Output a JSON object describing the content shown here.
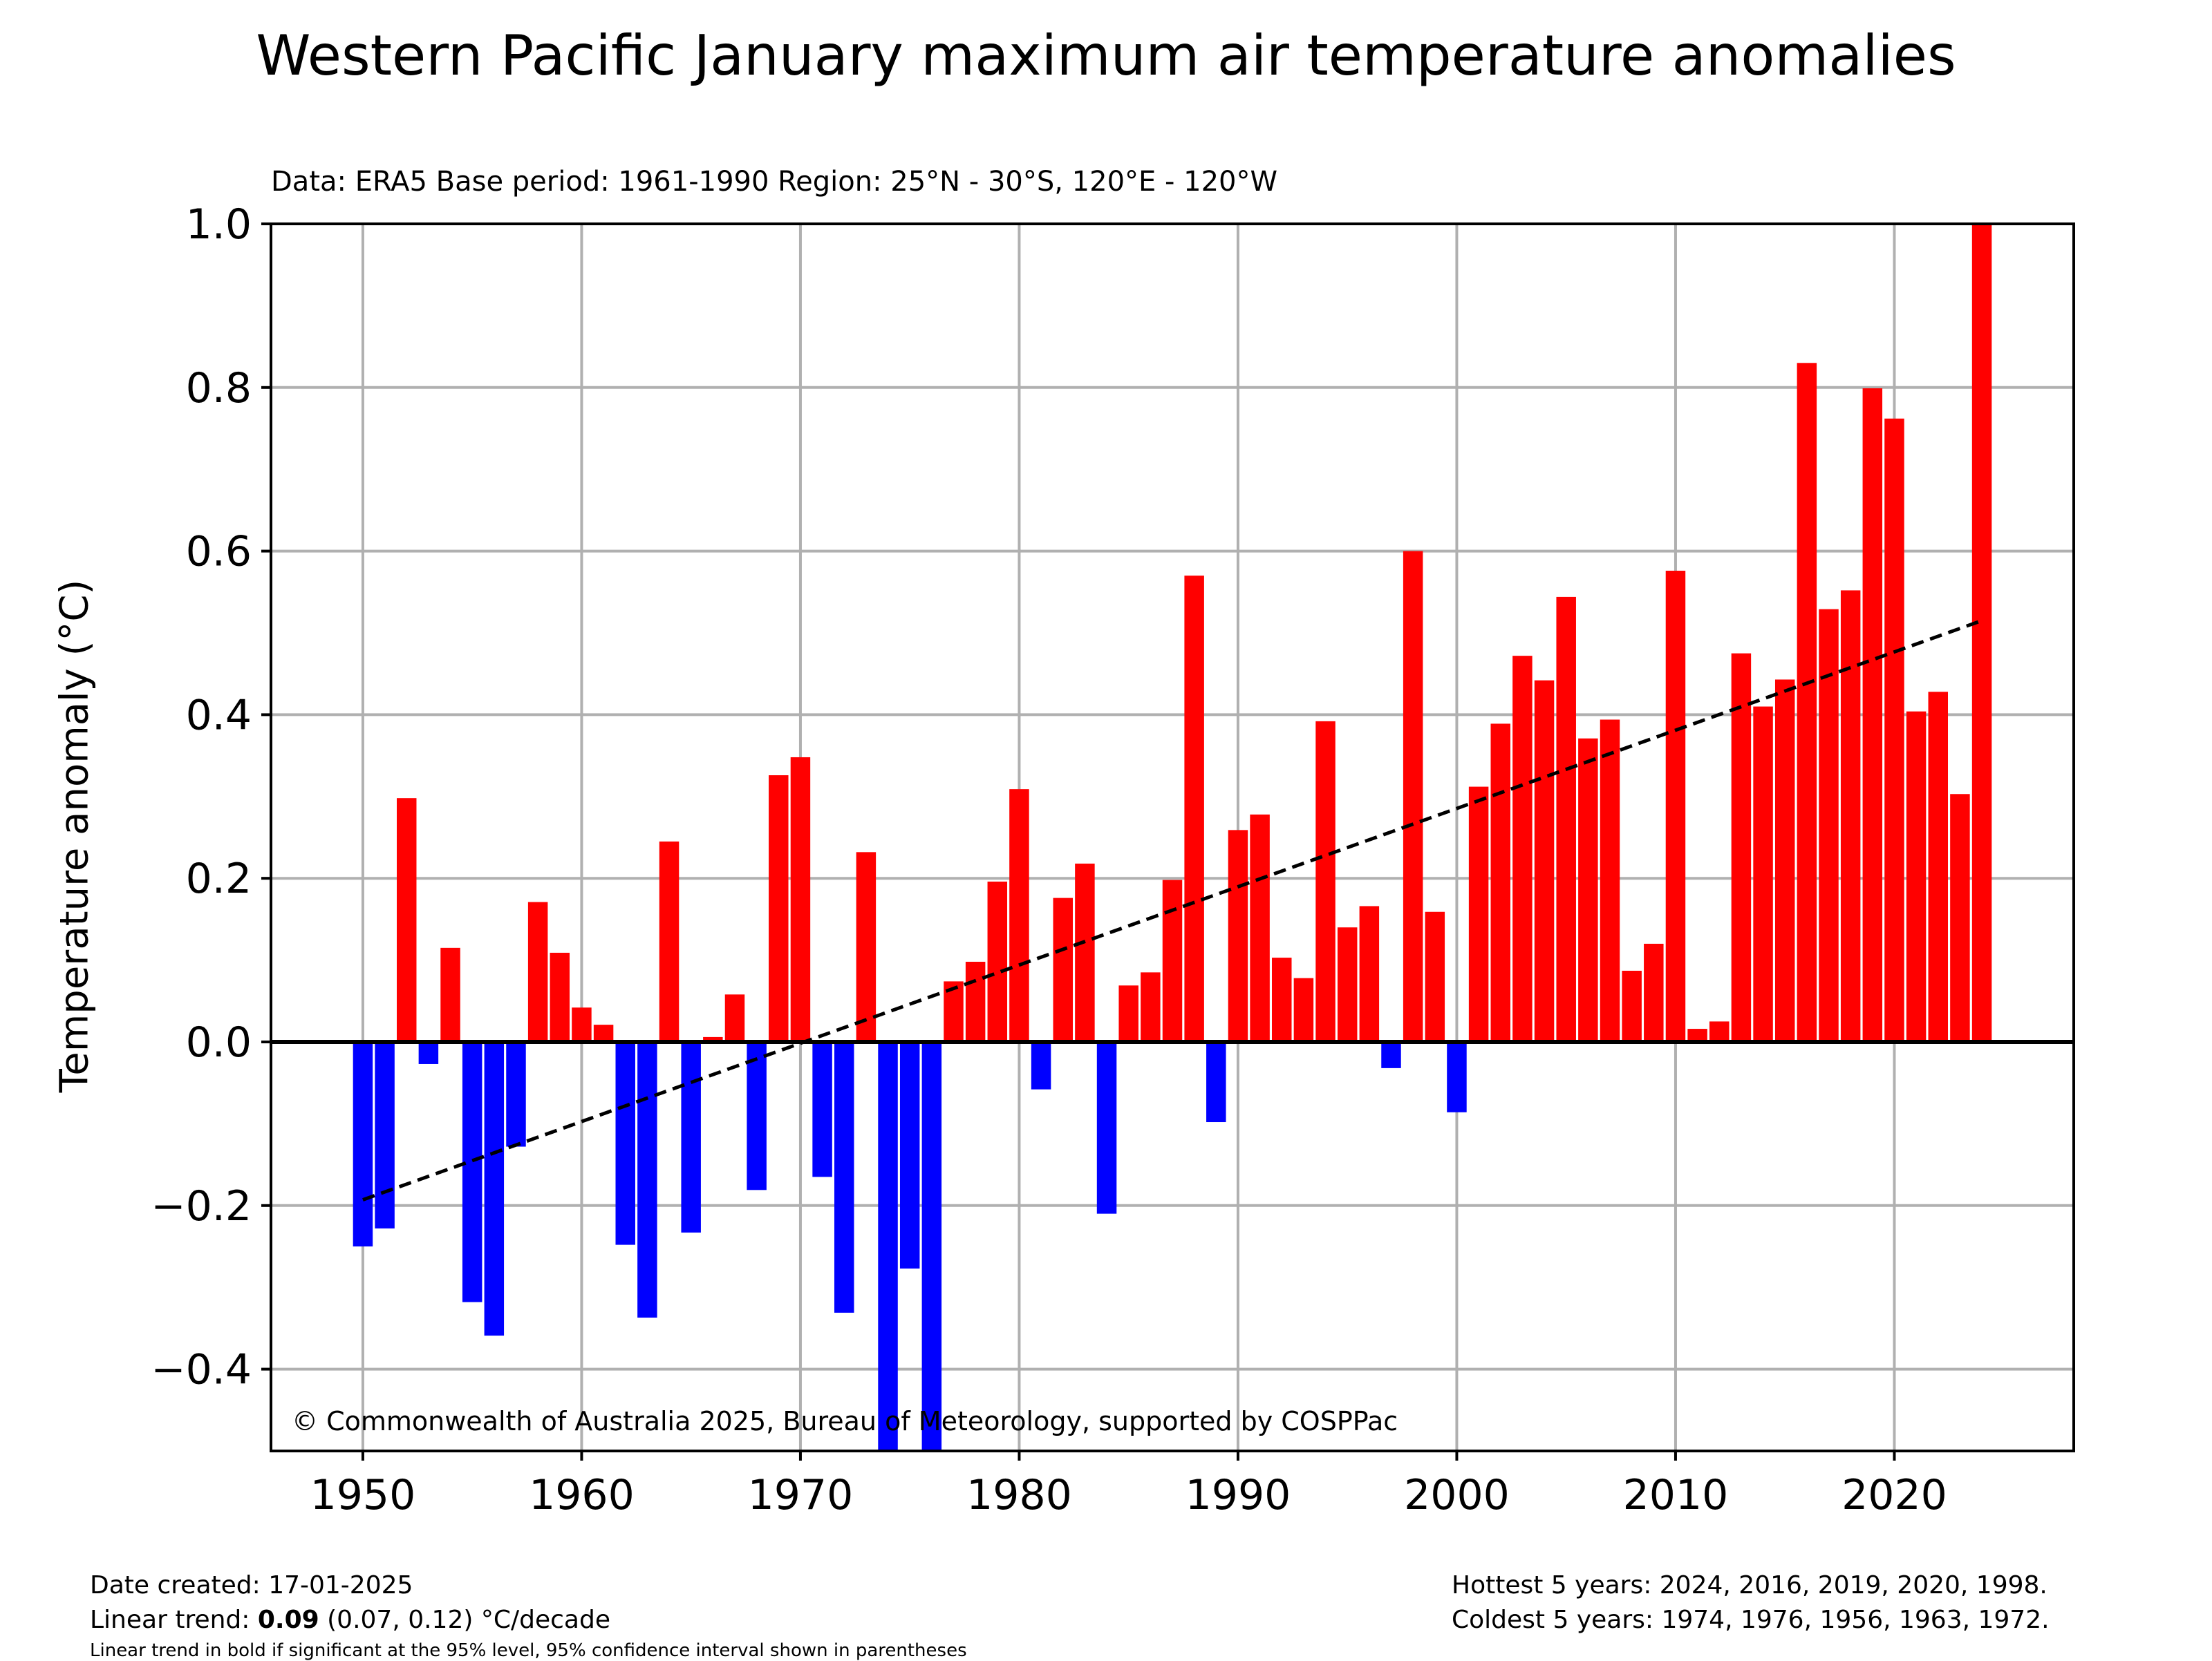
{
  "chart_data": {
    "type": "bar",
    "title": "Western Pacific January maximum air temperature anomalies",
    "subtitle": "Data: ERA5  Base period: 1961-1990  Region: 25°N - 30°S, 120°E - 120°W",
    "xlabel": "",
    "ylabel": "Temperature anomaly (°C)",
    "xlim": [
      1945.8,
      2028.2
    ],
    "ylim": [
      -0.5,
      1.0
    ],
    "x_ticks": [
      1950,
      1960,
      1970,
      1980,
      1990,
      2000,
      2010,
      2020
    ],
    "y_ticks": [
      -0.4,
      -0.2,
      0.0,
      0.2,
      0.4,
      0.6,
      0.8,
      1.0
    ],
    "y_tick_labels": [
      "−0.4",
      "−0.2",
      "0.0",
      "0.2",
      "0.4",
      "0.6",
      "0.8",
      "1.0"
    ],
    "grid": true,
    "positive_color": "#ff0000",
    "negative_color": "#0000ff",
    "trend_color": "#000000",
    "years": [
      1950,
      1951,
      1952,
      1953,
      1954,
      1955,
      1956,
      1957,
      1958,
      1959,
      1960,
      1961,
      1962,
      1963,
      1964,
      1965,
      1966,
      1967,
      1968,
      1969,
      1970,
      1971,
      1972,
      1973,
      1974,
      1975,
      1976,
      1977,
      1978,
      1979,
      1980,
      1981,
      1982,
      1983,
      1984,
      1985,
      1986,
      1987,
      1988,
      1989,
      1990,
      1991,
      1992,
      1993,
      1994,
      1995,
      1996,
      1997,
      1998,
      1999,
      2000,
      2001,
      2002,
      2003,
      2004,
      2005,
      2006,
      2007,
      2008,
      2009,
      2010,
      2011,
      2012,
      2013,
      2014,
      2015,
      2016,
      2017,
      2018,
      2019,
      2020,
      2021,
      2022,
      2023,
      2024
    ],
    "values": [
      -0.25,
      -0.228,
      0.298,
      -0.027,
      0.115,
      -0.318,
      -0.359,
      -0.128,
      0.171,
      0.109,
      0.042,
      0.021,
      -0.248,
      -0.337,
      0.245,
      -0.233,
      0.006,
      0.058,
      -0.181,
      0.326,
      0.348,
      -0.165,
      -0.331,
      0.232,
      -0.55,
      -0.277,
      -0.55,
      0.074,
      0.098,
      0.196,
      0.309,
      -0.058,
      0.176,
      0.218,
      -0.21,
      0.069,
      0.085,
      0.198,
      0.57,
      -0.098,
      0.259,
      0.278,
      0.103,
      0.078,
      0.392,
      0.14,
      0.166,
      -0.032,
      0.6,
      0.159,
      -0.086,
      0.312,
      0.389,
      0.472,
      0.442,
      0.544,
      0.371,
      0.394,
      0.087,
      0.12,
      0.576,
      0.016,
      0.025,
      0.475,
      0.41,
      0.443,
      0.83,
      0.529,
      0.552,
      0.799,
      0.762,
      0.404,
      0.428,
      0.303,
      1.05
    ],
    "trend": {
      "x": [
        1950,
        2024
      ],
      "y": [
        -0.193,
        0.515
      ]
    }
  },
  "copyright": "© Commonwealth of Australia 2025, Bureau of Meteorology, supported by COSPPac",
  "footer": {
    "date_created": "Date created: 17-01-2025",
    "trend_prefix": "Linear trend: ",
    "trend_value": "0.09",
    "trend_suffix": " (0.07, 0.12) °C/decade",
    "trend_note": "Linear trend in bold if significant at the 95% level, 95% confidence interval shown in parentheses",
    "hottest": "Hottest 5 years: 2024, 2016, 2019, 2020, 1998.",
    "coldest": "Coldest 5 years: 1974, 1976, 1956, 1963, 1972."
  }
}
